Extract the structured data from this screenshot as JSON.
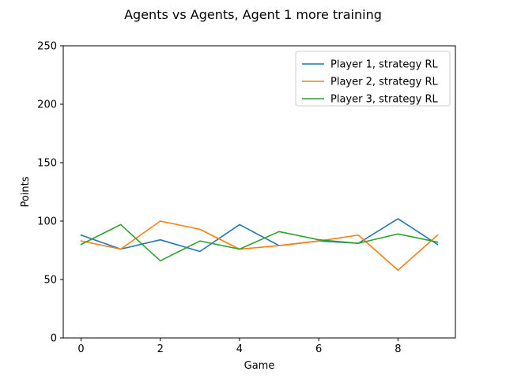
{
  "chart_data": {
    "type": "line",
    "title": "Agents vs Agents, Agent 1 more training",
    "xlabel": "Game",
    "ylabel": "Points",
    "x": [
      0,
      1,
      2,
      3,
      4,
      5,
      6,
      7,
      8,
      9
    ],
    "xlim": [
      -0.45,
      9.45
    ],
    "ylim": [
      0,
      250
    ],
    "xticks": [
      0,
      2,
      4,
      6,
      8
    ],
    "yticks": [
      0,
      50,
      100,
      150,
      200,
      250
    ],
    "grid": false,
    "legend_position": "top-right",
    "series": [
      {
        "name": "Player 1, strategy RL",
        "color": "#1f77b4",
        "values": [
          88,
          76,
          84,
          74,
          97,
          79,
          83,
          81,
          102,
          80
        ]
      },
      {
        "name": "Player 2, strategy RL",
        "color": "#ff7f0e",
        "values": [
          83,
          76,
          100,
          93,
          76,
          79,
          83,
          88,
          58,
          88
        ]
      },
      {
        "name": "Player 3, strategy RL",
        "color": "#2ca02c",
        "values": [
          80,
          97,
          66,
          83,
          76,
          91,
          84,
          81,
          89,
          82
        ]
      }
    ]
  }
}
